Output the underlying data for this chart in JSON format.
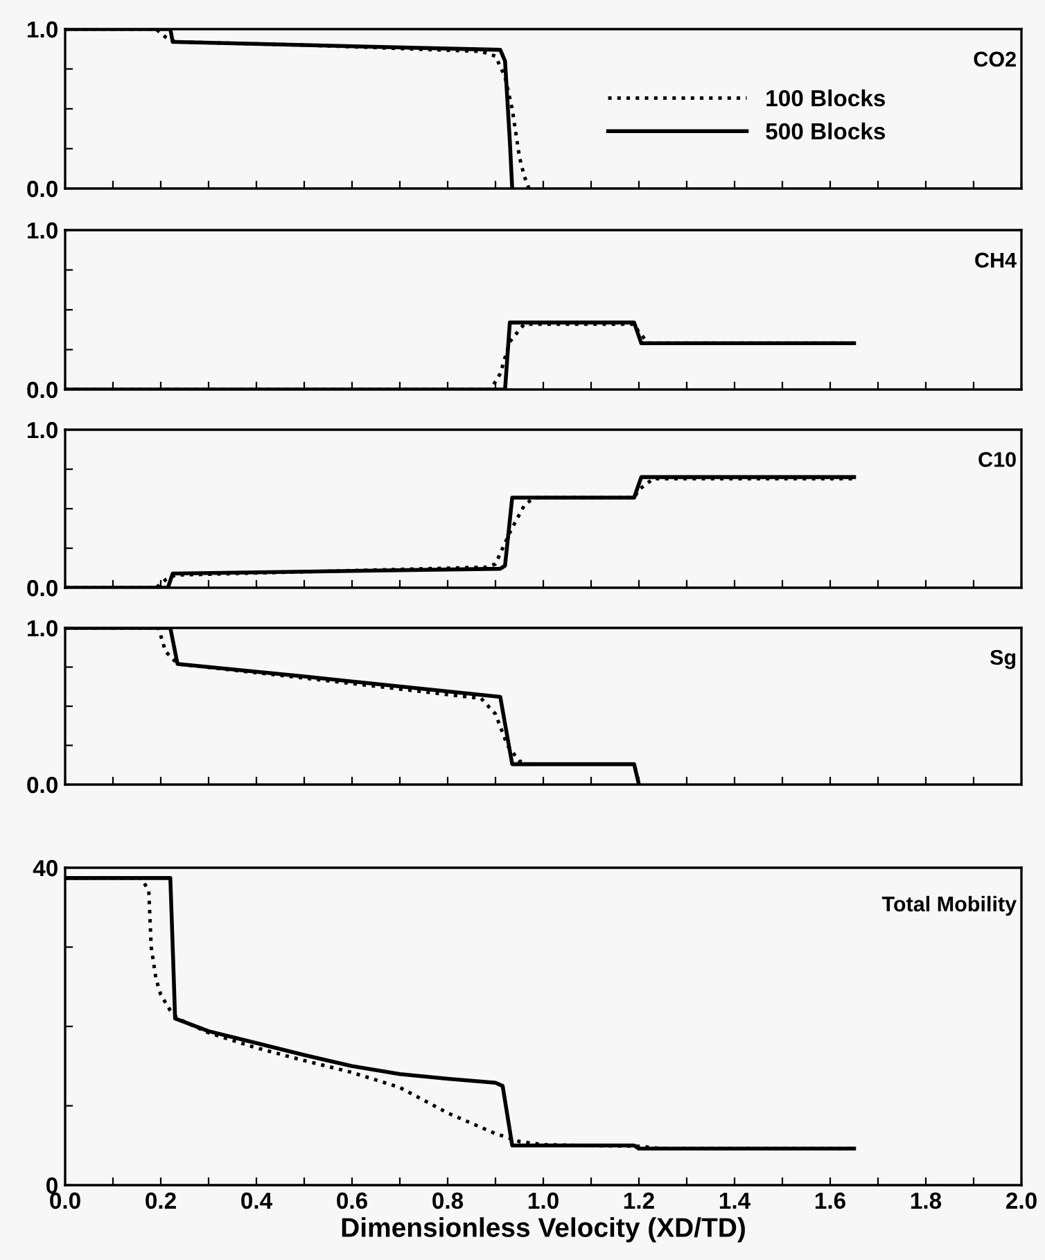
{
  "chart_data": [
    {
      "type": "line",
      "annotations": [
        "CO2"
      ],
      "ylim": [
        0,
        1
      ],
      "yticks": [
        {
          "value": 0,
          "label": "0.0"
        },
        {
          "value": 0.25,
          "label": null
        },
        {
          "value": 0.5,
          "label": null
        },
        {
          "value": 0.75,
          "label": null
        },
        {
          "value": 1,
          "label": "1.0"
        }
      ],
      "xlim": [
        0,
        2
      ],
      "xticks": [
        0,
        0.1,
        0.2,
        0.3,
        0.4,
        0.5,
        0.6,
        0.7,
        0.8,
        0.9,
        1.0,
        1.1,
        1.2,
        1.3,
        1.4,
        1.5,
        1.6,
        1.7,
        1.8,
        1.9,
        2.0
      ],
      "tick_labels": "y",
      "grid": false,
      "legend": "right",
      "series": [
        {
          "name": "100 Blocks",
          "color": "#000000",
          "line_style": "dotted",
          "x": [
            0,
            0.19,
            0.21,
            0.23,
            0.5,
            0.87,
            0.9,
            0.92,
            0.935,
            0.95,
            0.96,
            0.97
          ],
          "values": [
            1.0,
            1.0,
            0.95,
            0.92,
            0.9,
            0.86,
            0.83,
            0.7,
            0.5,
            0.2,
            0.08,
            0
          ]
        },
        {
          "name": "500 Blocks",
          "color": "#000000",
          "line_style": "solid",
          "x": [
            0,
            0.22,
            0.225,
            0.5,
            0.91,
            0.92,
            0.93,
            0.935
          ],
          "values": [
            1.0,
            1.0,
            0.92,
            0.9,
            0.87,
            0.8,
            0.3,
            0
          ]
        }
      ]
    },
    {
      "type": "line",
      "annotations": [
        "CH4"
      ],
      "ylim": [
        0,
        1
      ],
      "yticks": [
        {
          "value": 0,
          "label": "0.0"
        },
        {
          "value": 0.25,
          "label": null
        },
        {
          "value": 0.5,
          "label": null
        },
        {
          "value": 0.75,
          "label": null
        },
        {
          "value": 1,
          "label": "1.0"
        }
      ],
      "xlim": [
        0,
        2
      ],
      "xticks": [
        0,
        0.1,
        0.2,
        0.3,
        0.4,
        0.5,
        0.6,
        0.7,
        0.8,
        0.9,
        1.0,
        1.1,
        1.2,
        1.3,
        1.4,
        1.5,
        1.6,
        1.7,
        1.8,
        1.9,
        2.0
      ],
      "tick_labels": "y",
      "grid": false,
      "series": [
        {
          "color": "#000000",
          "line_style": "dotted",
          "x": [
            0,
            0.89,
            0.91,
            0.93,
            0.96,
            1.19,
            1.2,
            1.22,
            1.65
          ],
          "values": [
            0,
            0,
            0.1,
            0.3,
            0.41,
            0.41,
            0.36,
            0.29,
            0.29
          ]
        },
        {
          "color": "#000000",
          "line_style": "solid",
          "x": [
            0,
            0.92,
            0.93,
            1.19,
            1.205,
            1.65
          ],
          "values": [
            0,
            0,
            0.42,
            0.42,
            0.29,
            0.29
          ]
        }
      ]
    },
    {
      "type": "line",
      "annotations": [
        "C10"
      ],
      "ylim": [
        0,
        1
      ],
      "yticks": [
        {
          "value": 0,
          "label": "0.0"
        },
        {
          "value": 0.25,
          "label": null
        },
        {
          "value": 0.5,
          "label": null
        },
        {
          "value": 0.75,
          "label": null
        },
        {
          "value": 1,
          "label": "1.0"
        }
      ],
      "xlim": [
        0,
        2
      ],
      "xticks": [
        0,
        0.1,
        0.2,
        0.3,
        0.4,
        0.5,
        0.6,
        0.7,
        0.8,
        0.9,
        1.0,
        1.1,
        1.2,
        1.3,
        1.4,
        1.5,
        1.6,
        1.7,
        1.8,
        1.9,
        2.0
      ],
      "tick_labels": "y",
      "grid": false,
      "series": [
        {
          "color": "#000000",
          "line_style": "dotted",
          "x": [
            0,
            0.19,
            0.21,
            0.23,
            0.88,
            0.9,
            0.93,
            0.96,
            0.98,
            1.19,
            1.2,
            1.23,
            1.65
          ],
          "values": [
            0,
            0,
            0.05,
            0.08,
            0.13,
            0.15,
            0.35,
            0.52,
            0.57,
            0.57,
            0.62,
            0.69,
            0.69
          ]
        },
        {
          "color": "#000000",
          "line_style": "solid",
          "x": [
            0,
            0.215,
            0.225,
            0.91,
            0.92,
            0.935,
            1.19,
            1.205,
            1.65
          ],
          "values": [
            0,
            0,
            0.09,
            0.12,
            0.14,
            0.57,
            0.57,
            0.7,
            0.7
          ]
        }
      ]
    },
    {
      "type": "line",
      "annotations": [
        "Sg"
      ],
      "ylim": [
        0,
        1
      ],
      "yticks": [
        {
          "value": 0,
          "label": "0.0"
        },
        {
          "value": 0.25,
          "label": null
        },
        {
          "value": 0.5,
          "label": null
        },
        {
          "value": 0.75,
          "label": null
        },
        {
          "value": 1,
          "label": "1.0"
        }
      ],
      "xlim": [
        0,
        2
      ],
      "xticks": [
        0,
        0.1,
        0.2,
        0.3,
        0.4,
        0.5,
        0.6,
        0.7,
        0.8,
        0.9,
        1.0,
        1.1,
        1.2,
        1.3,
        1.4,
        1.5,
        1.6,
        1.7,
        1.8,
        1.9,
        2.0
      ],
      "tick_labels": "y",
      "grid": false,
      "series": [
        {
          "color": "#000000",
          "line_style": "dotted",
          "x": [
            0,
            0.195,
            0.21,
            0.235,
            0.5,
            0.87,
            0.9,
            0.925,
            0.95,
            0.97,
            1.19,
            1.2
          ],
          "values": [
            1.0,
            1.0,
            0.85,
            0.77,
            0.68,
            0.55,
            0.45,
            0.25,
            0.15,
            0.13,
            0.13,
            0
          ]
        },
        {
          "color": "#000000",
          "line_style": "solid",
          "x": [
            0,
            0.22,
            0.235,
            0.5,
            0.91,
            0.935,
            1.19,
            1.2
          ],
          "values": [
            1.0,
            1.0,
            0.77,
            0.69,
            0.56,
            0.13,
            0.13,
            0
          ]
        }
      ]
    },
    {
      "type": "line",
      "annotations": [
        "Total Mobility"
      ],
      "xlabel": "Dimensionless Velocity (XD/TD)",
      "ylim": [
        0,
        40
      ],
      "yticks": [
        0,
        {
          "value": 10,
          "label": null
        },
        {
          "value": 20,
          "label": null
        },
        {
          "value": 30,
          "label": null
        },
        40
      ],
      "xlim": [
        0,
        2
      ],
      "xticks": [
        {
          "value": 0,
          "label": "0.0"
        },
        {
          "value": 0.1,
          "label": null
        },
        {
          "value": 0.2,
          "label": "0.2"
        },
        {
          "value": 0.3,
          "label": null
        },
        {
          "value": 0.4,
          "label": "0.4"
        },
        {
          "value": 0.5,
          "label": null
        },
        {
          "value": 0.6,
          "label": "0.6"
        },
        {
          "value": 0.7,
          "label": null
        },
        {
          "value": 0.8,
          "label": "0.8"
        },
        {
          "value": 0.9,
          "label": null
        },
        {
          "value": 1.0,
          "label": "1.0"
        },
        {
          "value": 1.1,
          "label": null
        },
        {
          "value": 1.2,
          "label": "1.2"
        },
        {
          "value": 1.3,
          "label": null
        },
        {
          "value": 1.4,
          "label": "1.4"
        },
        {
          "value": 1.5,
          "label": null
        },
        {
          "value": 1.6,
          "label": "1.6"
        },
        {
          "value": 1.7,
          "label": null
        },
        {
          "value": 1.8,
          "label": "1.8"
        },
        {
          "value": 1.9,
          "label": null
        },
        {
          "value": 2.0,
          "label": "2.0"
        }
      ],
      "grid": false,
      "series": [
        {
          "color": "#000000",
          "line_style": "dotted",
          "x": [
            0,
            0.16,
            0.175,
            0.18,
            0.19,
            0.2,
            0.22,
            0.235,
            0.3,
            0.4,
            0.5,
            0.6,
            0.7,
            0.8,
            0.9,
            0.95,
            1.0,
            1.2,
            1.25,
            1.65
          ],
          "values": [
            38.7,
            38.7,
            37,
            30,
            26,
            24,
            22,
            21,
            19.2,
            17.3,
            15.7,
            14.2,
            12.3,
            9.1,
            6.5,
            5.5,
            5.1,
            4.9,
            4.6,
            4.6
          ]
        },
        {
          "color": "#000000",
          "line_style": "solid",
          "x": [
            0,
            0.22,
            0.225,
            0.23,
            0.3,
            0.4,
            0.5,
            0.6,
            0.7,
            0.8,
            0.9,
            0.915,
            0.935,
            1.19,
            1.2,
            1.65
          ],
          "values": [
            38.7,
            38.7,
            30,
            21,
            19.4,
            17.9,
            16.4,
            15.0,
            14.0,
            13.4,
            12.9,
            12.5,
            5.0,
            5.0,
            4.6,
            4.6
          ]
        }
      ]
    }
  ]
}
